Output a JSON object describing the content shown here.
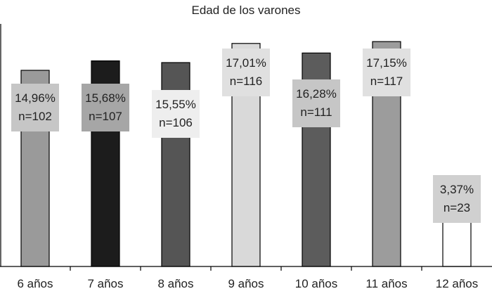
{
  "chart_data": {
    "type": "bar",
    "title": "Edad de los varones",
    "xlabel": "",
    "ylabel": "",
    "categories": [
      "6 años",
      "7 años",
      "8 años",
      "9 años",
      "10 años",
      "11 años",
      "12 años"
    ],
    "values": [
      14.96,
      15.68,
      15.55,
      17.01,
      16.28,
      17.15,
      3.37
    ],
    "counts": [
      102,
      107,
      106,
      116,
      111,
      117,
      23
    ],
    "data_labels": [
      [
        "14,96%",
        "n=102"
      ],
      [
        "15,68%",
        "n=107"
      ],
      [
        "15,55%",
        "n=106"
      ],
      [
        "17,01%",
        "n=116"
      ],
      [
        "16,28%",
        "n=111"
      ],
      [
        "17,15%",
        "n=117"
      ],
      [
        "3,37%",
        "n=23"
      ]
    ],
    "ylim": [
      0,
      18.5
    ],
    "grid": false,
    "bar_colors": [
      "#9a9a9a",
      "#1c1c1c",
      "#555555",
      "#d9d9d9",
      "#5c5c5c",
      "#9c9c9c",
      "#ffffff"
    ],
    "label_box_colors": [
      "#c6c6c6",
      "#a6a6a6",
      "#eeeeee",
      "#e0e0e0",
      "#c6c6c6",
      "#e0e0e0",
      "#d0d0d0"
    ]
  }
}
